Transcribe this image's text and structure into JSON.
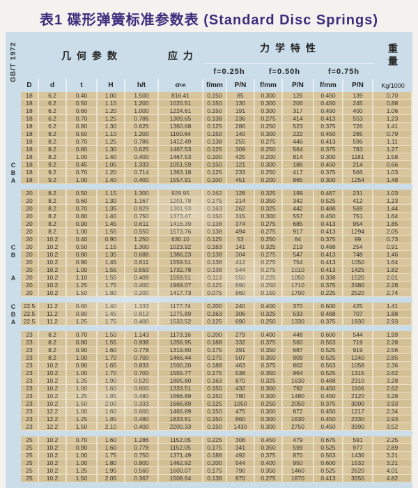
{
  "title": "表1 碟形弹簧标准参数表 (Standard Disc Springs)",
  "standard": "GB/T 1972",
  "colors": {
    "title_color": "#3a2d7c",
    "panel_bg": "#cbdde9",
    "cell_bg": "#d8c59c"
  },
  "header": {
    "geometry_group": "几 何 参 数",
    "stress_group": "应 力",
    "mech_group": "力 学 特 性",
    "weight_group": "重量",
    "deflections": [
      "f=0.25h",
      "f=0.50h",
      "f=0.75h"
    ],
    "col_D": "D",
    "col_d": "d",
    "col_t": "t",
    "col_H": "H",
    "col_ht": "h/t",
    "sigma_sym": "σ",
    "sigma_sub": "oa",
    "col_f": "f/mm",
    "col_p": "P/N",
    "col_weight": "Kg/1000"
  },
  "sections": [
    {
      "rows": [
        [
          "",
          "18",
          "6.2",
          "0.40",
          "1.00",
          "1.500",
          "816.41",
          "0.150",
          "85",
          "0.300",
          "126",
          "0.450",
          "139",
          "0.70"
        ],
        [
          "",
          "18",
          "6.2",
          "0.50",
          "1.10",
          "1.200",
          "1020.51",
          "0.150",
          "130",
          "0.300",
          "206",
          "0.450",
          "245",
          "0.88"
        ],
        [
          "",
          "18",
          "6.2",
          "0.60",
          "1.20",
          "1.000",
          "1224.61",
          "0.150",
          "191",
          "0.300",
          "317",
          "0.450",
          "400",
          "1.06"
        ],
        [
          "",
          "18",
          "6.2",
          "0.70",
          "1.25",
          "0.786",
          "1309.65",
          "0.138",
          "236",
          "0.275",
          "414",
          "0.413",
          "553",
          "1.23"
        ],
        [
          "",
          "18",
          "6.2",
          "0.80",
          "1.30",
          "0.625",
          "1360.68",
          "0.125",
          "286",
          "0.250",
          "523",
          "0.375",
          "726",
          "1.41"
        ],
        [
          "",
          "18",
          "8.2",
          "0.50",
          "1.10",
          "1.200",
          "1100.64",
          "0.150",
          "140",
          "0.300",
          "222",
          "0.450",
          "265",
          "0.79"
        ],
        [
          "",
          "18",
          "8.2",
          "0.70",
          "1.25",
          "0.786",
          "1412.49",
          "0.138",
          "255",
          "0.275",
          "446",
          "0.413",
          "596",
          "1.11"
        ],
        [
          "",
          "18",
          "8.2",
          "0.80",
          "1.30",
          "0.625",
          "1467.53",
          "0.125",
          "309",
          "0.250",
          "564",
          "0.375",
          "783",
          "1.27"
        ],
        [
          "",
          "18",
          "8.2",
          "1.00",
          "1.40",
          "0.400",
          "1467.53",
          "0.100",
          "425",
          "0.200",
          "814",
          "0.300",
          "1181",
          "1.58"
        ],
        [
          "C",
          "18",
          "9.2",
          "0.45",
          "1.05",
          "1.333",
          "1051.59",
          "0.150",
          "121",
          "0.300",
          "186",
          "0.450",
          "214",
          "0.66"
        ],
        [
          "B",
          "18",
          "9.2",
          "0.70",
          "1.20",
          "0.714",
          "1363.18",
          "0.125",
          "233",
          "0.250",
          "417",
          "0.375",
          "566",
          "1.03"
        ],
        [
          "A",
          "18",
          "9.2",
          "1.00",
          "1.40",
          "0.400",
          "1557.91",
          "0.100",
          "451",
          "0.200",
          "865",
          "0.300",
          "1254",
          "1.48"
        ]
      ]
    },
    {
      "rows": [
        [
          "",
          "20",
          "8.2",
          "0.50",
          "1.15",
          "1.300",
          "929.95",
          "0.162",
          "128",
          "0.325",
          "199",
          "0.487",
          "231",
          "1.03"
        ],
        [
          "",
          "20",
          "8.2",
          "0.60",
          "1.30",
          "1.167",
          "1201.78",
          "0.175",
          "214",
          "0.350",
          "342",
          "0.525",
          "412",
          "1.23"
        ],
        [
          "",
          "20",
          "8.2",
          "0.70",
          "1.35",
          "0.929",
          "1301.93",
          "0.163",
          "262",
          "0.325",
          "442",
          "0.488",
          "569",
          "1.44"
        ],
        [
          "",
          "20",
          "8.2",
          "0.80",
          "1.40",
          "0.750",
          "1373.47",
          "0.150",
          "315",
          "0.300",
          "557",
          "0.450",
          "751",
          "1.64"
        ],
        [
          "",
          "20",
          "8.2",
          "0.90",
          "1.45",
          "0.611",
          "1416.39",
          "0.138",
          "374",
          "0.275",
          "685",
          "0.413",
          "954",
          "1.85"
        ],
        [
          "",
          "20",
          "8.2",
          "1.00",
          "1.55",
          "0.550",
          "1573.76",
          "0.138",
          "494",
          "0.275",
          "917",
          "0.413",
          "1294",
          "2.05"
        ],
        [
          "",
          "20",
          "10.2",
          "0.40",
          "0.90",
          "1.250",
          "630.10",
          "0.125",
          "53",
          "0.250",
          "84",
          "0.375",
          "99",
          "0.73"
        ],
        [
          "C",
          "20",
          "10.2",
          "0.50",
          "1.15",
          "1.300",
          "1023.92",
          "0.163",
          "141",
          "0.325",
          "219",
          "0.488",
          "254",
          "0.91"
        ],
        [
          "B",
          "20",
          "10.2",
          "0.80",
          "1.35",
          "0.688",
          "1386.23",
          "0.138",
          "304",
          "0.275",
          "547",
          "0.413",
          "748",
          "1.46"
        ],
        [
          "",
          "20",
          "10.2",
          "0.90",
          "1.45",
          "0.611",
          "1559.51",
          "0.138",
          "412",
          "0.275",
          "754",
          "0.413",
          "1050",
          "1.64"
        ],
        [
          "",
          "20",
          "10.2",
          "1.00",
          "1.55",
          "0.550",
          "1732.78",
          "0.138",
          "544",
          "0.275",
          "1010",
          "0.413",
          "1425",
          "1.82"
        ],
        [
          "A",
          "20",
          "10.2",
          "1.10",
          "1.55",
          "0.409",
          "1559.51",
          "0.113",
          "550",
          "0.225",
          "1050",
          "0.338",
          "1520",
          "2.01"
        ],
        [
          "",
          "20",
          "10.2",
          "1.25",
          "1.75",
          "0.400",
          "1969.07",
          "0.125",
          "890",
          "0.250",
          "1710",
          "0.375",
          "2480",
          "2.28"
        ],
        [
          "",
          "20",
          "10.2",
          "1.50",
          "1.80",
          "0.200",
          "1417.73",
          "0.075",
          "860",
          "0.150",
          "1700",
          "0.225",
          "2520",
          "2.74"
        ]
      ]
    },
    {
      "rows": [
        [
          "C",
          "22.5",
          "11.2",
          "0.60",
          "1.40",
          "1.333",
          "1177.74",
          "0.200",
          "240",
          "0.400",
          "370",
          "0.600",
          "425",
          "1.41"
        ],
        [
          "B",
          "22.5",
          "11.2",
          "0.80",
          "1.45",
          "0.813",
          "1275.89",
          "0.163",
          "306",
          "0.325",
          "533",
          "0.488",
          "707",
          "1.88"
        ],
        [
          "A",
          "22.5",
          "11.2",
          "1.25",
          "1.75",
          "0.400",
          "1533.52",
          "0.125",
          "690",
          "0.250",
          "1330",
          "0.375",
          "1930",
          "2.93"
        ]
      ]
    },
    {
      "rows": [
        [
          "",
          "23",
          "8.2",
          "0.70",
          "1.50",
          "1.143",
          "1173.16",
          "0.200",
          "279",
          "0.400",
          "448",
          "0.600",
          "544",
          "1.99"
        ],
        [
          "",
          "23",
          "8.2",
          "0.80",
          "1.55",
          "0.938",
          "1256.95",
          "0.188",
          "332",
          "0.375",
          "560",
          "0.563",
          "719",
          "2.28"
        ],
        [
          "",
          "23",
          "8.2",
          "0.90",
          "1.60",
          "0.778",
          "1319.80",
          "0.175",
          "391",
          "0.350",
          "687",
          "0.525",
          "919",
          "2.56"
        ],
        [
          "",
          "23",
          "8.2",
          "1.00",
          "1.70",
          "0.700",
          "1466.44",
          "0.175",
          "507",
          "0.350",
          "909",
          "0.525",
          "1240",
          "2.85"
        ],
        [
          "",
          "23",
          "10.2",
          "0.90",
          "1.65",
          "0.833",
          "1500.20",
          "0.188",
          "463",
          "0.375",
          "802",
          "0.563",
          "1058",
          "2.36"
        ],
        [
          "",
          "23",
          "10.2",
          "1.00",
          "1.70",
          "0.700",
          "1555.77",
          "0.175",
          "538",
          "0.350",
          "964",
          "0.525",
          "1315",
          "2.62"
        ],
        [
          "",
          "23",
          "10.2",
          "1.25",
          "1.90",
          "0.520",
          "1805.80",
          "0.163",
          "870",
          "0.325",
          "1630",
          "0.488",
          "2310",
          "3.28"
        ],
        [
          "",
          "23",
          "10.2",
          "1.00",
          "1.60",
          "0.600",
          "1333.51",
          "0.150",
          "432",
          "0.300",
          "792",
          "0.450",
          "1106",
          "2.62"
        ],
        [
          "",
          "23",
          "10.2",
          "1.25",
          "1.85",
          "0.480",
          "1666.89",
          "0.150",
          "780",
          "0.300",
          "1480",
          "0.450",
          "2120",
          "3.28"
        ],
        [
          "",
          "23",
          "10.2",
          "1.50",
          "2.00",
          "0.333",
          "1666.89",
          "0.125",
          "1050",
          "0.250",
          "2050",
          "0.375",
          "3000",
          "3.93"
        ],
        [
          "",
          "23",
          "12.2",
          "1.00",
          "1.60",
          "0.600",
          "1466.89",
          "0.150",
          "475",
          "0.300",
          "872",
          "0.450",
          "1217",
          "2.34"
        ],
        [
          "",
          "23",
          "12.2",
          "1.25",
          "1.85",
          "0.480",
          "1833.61",
          "0.150",
          "860",
          "0.300",
          "1630",
          "0.450",
          "2330",
          "2.93"
        ],
        [
          "",
          "23",
          "12.2",
          "1.50",
          "2.10",
          "0.400",
          "2200.33",
          "0.150",
          "1430",
          "0.300",
          "2750",
          "0.450",
          "3990",
          "3.52"
        ]
      ]
    },
    {
      "rows": [
        [
          "",
          "25",
          "10.2",
          "0.70",
          "1.60",
          "1.286",
          "1152.05",
          "0.225",
          "308",
          "0.450",
          "479",
          "0.675",
          "591",
          "2.25"
        ],
        [
          "",
          "25",
          "10.2",
          "0.90",
          "1.60",
          "0.778",
          "1152.05",
          "0.175",
          "341",
          "0.350",
          "599",
          "0.525",
          "977",
          "2.89"
        ],
        [
          "",
          "25",
          "10.2",
          "1.00",
          "1.75",
          "0.750",
          "1371.49",
          "0.188",
          "492",
          "0.375",
          "870",
          "0.563",
          "1436",
          "3.21"
        ],
        [
          "",
          "25",
          "10.2",
          "1.00",
          "1.80",
          "0.800",
          "1462.92",
          "0.200",
          "544",
          "0.400",
          "950",
          "0.600",
          "1532",
          "3.21"
        ],
        [
          "",
          "25",
          "10.2",
          "1.25",
          "1.95",
          "0.560",
          "1600.07",
          "0.175",
          "790",
          "0.350",
          "1460",
          "0.525",
          "2620",
          "4.01"
        ],
        [
          "",
          "25",
          "10.2",
          "1.50",
          "2.05",
          "0.367",
          "1508.64",
          "0.138",
          "970",
          "0.275",
          "1870",
          "0.413",
          "3550",
          "4.82"
        ]
      ]
    }
  ]
}
